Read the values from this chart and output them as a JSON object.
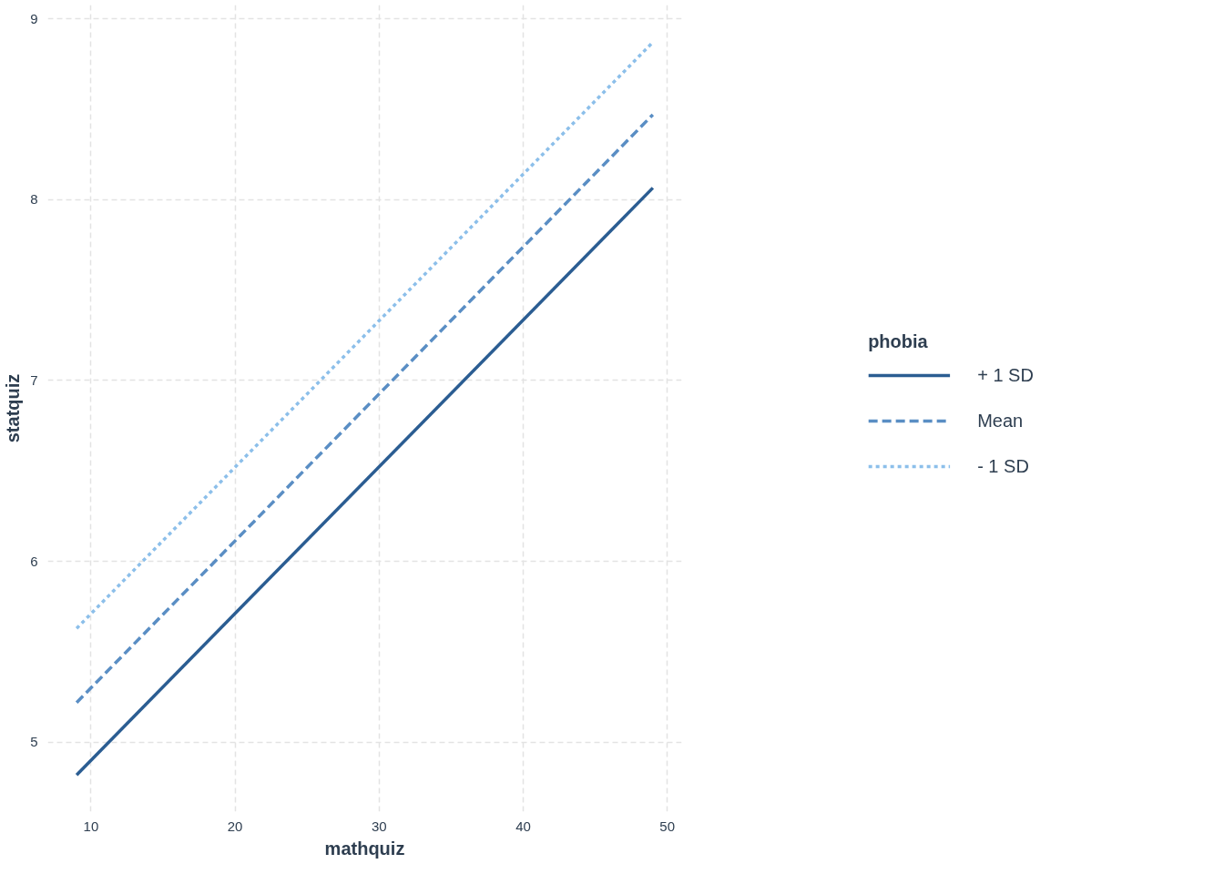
{
  "chart_data": {
    "type": "line",
    "xlabel": "mathquiz",
    "ylabel": "statquiz",
    "legend_title": "phobia",
    "xlim": [
      7,
      51
    ],
    "ylim": [
      4.617,
      9.076
    ],
    "xticks": [
      10,
      20,
      30,
      40,
      50
    ],
    "yticks": [
      5,
      6,
      7,
      8,
      9
    ],
    "grid": true,
    "legend": "right",
    "x": [
      9,
      49
    ],
    "series": [
      {
        "name": "+ 1 SD",
        "color": "#2b5d92",
        "line_style": "solid",
        "values": [
          4.82,
          8.065
        ]
      },
      {
        "name": "Mean",
        "color": "#5a8ec4",
        "line_style": "dashed",
        "values": [
          5.22,
          8.47
        ]
      },
      {
        "name": "- 1 SD",
        "color": "#8cbfea",
        "line_style": "dotted",
        "values": [
          5.63,
          8.87
        ]
      }
    ]
  }
}
